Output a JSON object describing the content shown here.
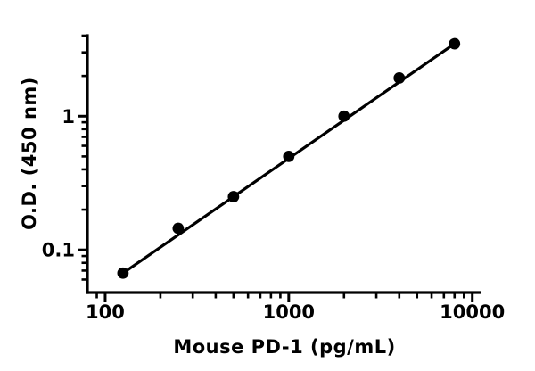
{
  "figure": {
    "background_color": "#ffffff",
    "foreground_color": "#000000"
  },
  "chart_data": {
    "type": "scatter",
    "title": "",
    "xlabel": "Mouse PD-1 (pg/mL)",
    "ylabel": "O.D. (450 nm)",
    "x_scale": "log",
    "y_scale": "log",
    "xlim": [
      80,
      11220
    ],
    "ylim": [
      0.048,
      4.0
    ],
    "grid": false,
    "legend": "none",
    "series": [
      {
        "name": "standard-curve",
        "x": [
          125,
          250,
          500,
          1000,
          2000,
          4000,
          8000
        ],
        "y": [
          0.067,
          0.145,
          0.25,
          0.5,
          1.0,
          1.93,
          3.48
        ],
        "marker": "filled-circle",
        "marker_color": "#000000",
        "line_color": "#000000",
        "fit_line": {
          "x": [
            125,
            8000
          ],
          "y": [
            0.067,
            3.48
          ]
        }
      }
    ],
    "x_axis": {
      "major_ticks": [
        100,
        1000,
        10000
      ],
      "major_tick_labels": [
        "100",
        "1000",
        "10000"
      ],
      "minor_ticks": [
        90,
        200,
        300,
        400,
        500,
        600,
        700,
        800,
        900,
        2000,
        3000,
        4000,
        5000,
        6000,
        7000,
        8000,
        9000
      ]
    },
    "y_axis": {
      "major_ticks": [
        1,
        0.1
      ],
      "major_tick_labels": [
        "1",
        "0.1"
      ],
      "minor_ticks": [
        4,
        3,
        2,
        0.9,
        0.8,
        0.7,
        0.6,
        0.5,
        0.4,
        0.3,
        0.2,
        0.09,
        0.08,
        0.07,
        0.06
      ]
    }
  }
}
